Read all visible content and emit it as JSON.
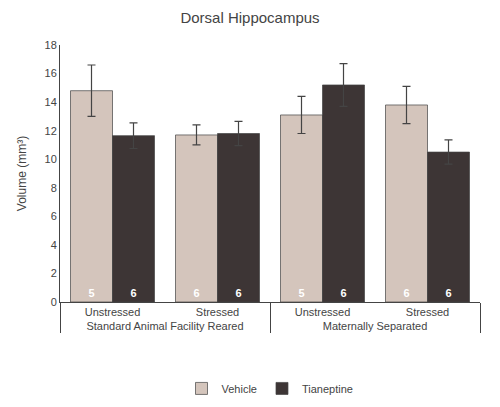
{
  "chart_data": {
    "type": "bar",
    "title": "Dorsal Hippocampus",
    "y_label": "Volume (mm³)",
    "categories": [
      "Unstressed",
      "Stressed",
      "Unstressed",
      "Stressed"
    ],
    "category_groups": [
      "Standard Animal Facility Reared",
      "Standard Animal Facility Reared",
      "Maternally Separated",
      "Maternally Separated"
    ],
    "series": [
      {
        "name": "Vehicle",
        "color": "#d4c5bc",
        "values": [
          14.8,
          11.7,
          13.1,
          13.8
        ],
        "errors": [
          1.8,
          0.7,
          1.3,
          1.3
        ],
        "n": [
          5,
          6,
          5,
          6
        ]
      },
      {
        "name": "Tianeptine",
        "color": "#3d3535",
        "values": [
          11.65,
          11.8,
          15.2,
          10.5
        ],
        "errors": [
          0.9,
          0.85,
          1.5,
          0.85
        ],
        "n": [
          6,
          6,
          6,
          6
        ]
      }
    ],
    "ylim": [
      0,
      18
    ],
    "yticks": [
      0,
      2,
      4,
      6,
      8,
      10,
      12,
      14,
      16,
      18
    ],
    "grid": false,
    "legend": "bottom"
  }
}
